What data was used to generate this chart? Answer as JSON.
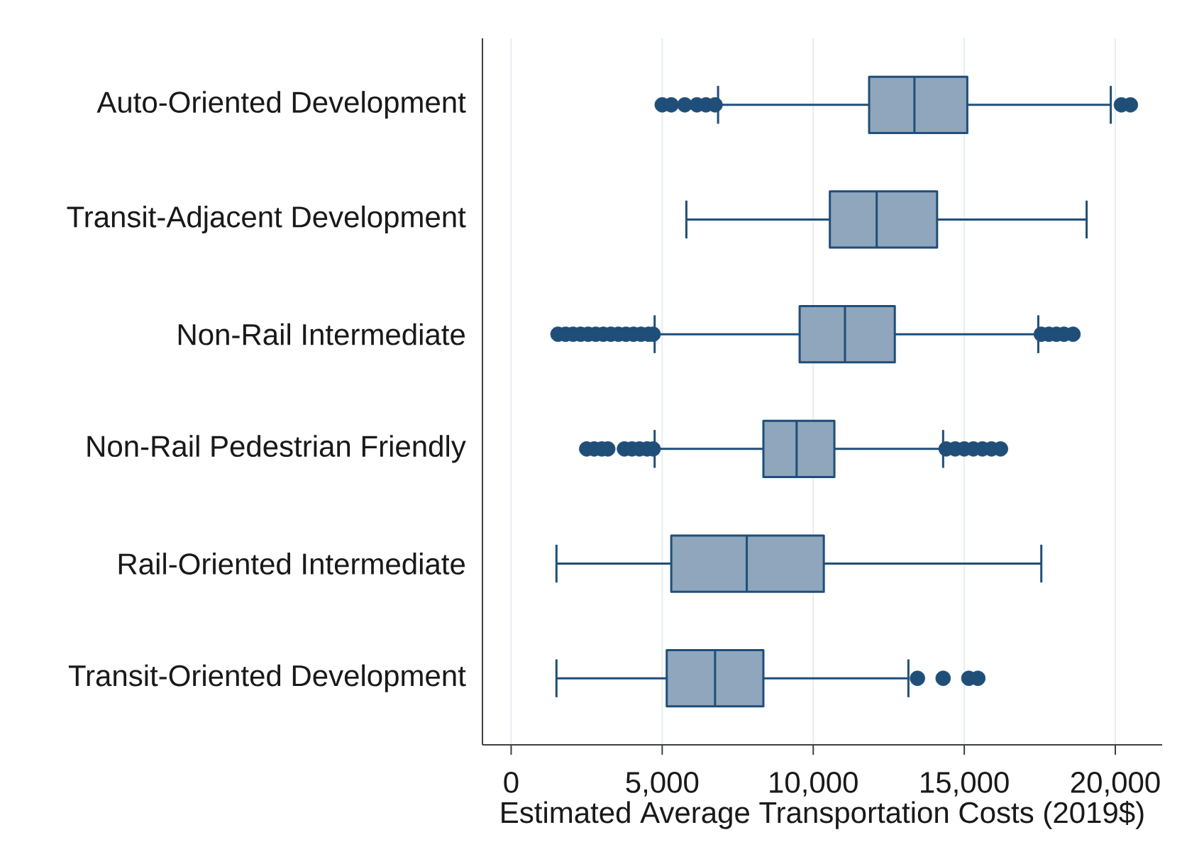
{
  "chart_data": {
    "type": "box",
    "orientation": "horizontal",
    "categories": [
      "Auto-Oriented Development",
      "Transit-Adjacent Development",
      "Non-Rail Intermediate",
      "Non-Rail Pedestrian Friendly",
      "Rail-Oriented Intermediate",
      "Transit-Oriented Development"
    ],
    "xlabel": "Estimated Average Transportation Costs (2019$)",
    "xlim": [
      -950,
      21550
    ],
    "xticks": [
      0,
      {
        "value": 5000,
        "label": "5,000"
      },
      {
        "value": 10000,
        "label": "10,000"
      },
      {
        "value": 15000,
        "label": "15,000"
      },
      {
        "value": 20000,
        "label": "20,000"
      }
    ],
    "grid": "x",
    "marker": "circle",
    "series": [
      {
        "color": "#1f4e79",
        "boxes": [
          {
            "low": 6850,
            "q1": 11850,
            "median": 13350,
            "q3": 15100,
            "high": 19850,
            "outliers": [
              5000,
              5300,
              5750,
              6150,
              6450,
              6750,
              20200,
              20500
            ]
          },
          {
            "low": 5800,
            "q1": 10550,
            "median": 12100,
            "q3": 14100,
            "high": 19050
          },
          {
            "low": 4750,
            "q1": 9550,
            "median": 11050,
            "q3": 12700,
            "high": 17450,
            "outliers": [
              1550,
              1800,
              2050,
              2300,
              2550,
              2800,
              3050,
              3300,
              3550,
              3800,
              4050,
              4300,
              4550,
              4700,
              17550,
              17800,
              18050,
              18300,
              18600
            ]
          },
          {
            "low": 4750,
            "q1": 8350,
            "median": 9450,
            "q3": 10700,
            "high": 14300,
            "outliers": [
              2500,
              2750,
              3000,
              3200,
              3750,
              4000,
              4250,
              4500,
              4700,
              14400,
              14700,
              15000,
              15300,
              15600,
              15900,
              16200
            ]
          },
          {
            "low": 1500,
            "q1": 5300,
            "median": 7800,
            "q3": 10350,
            "high": 17550
          },
          {
            "low": 1500,
            "q1": 5150,
            "median": 6750,
            "q3": 8350,
            "high": 13150,
            "outliers": [
              13450,
              14300,
              15150,
              15450
            ]
          }
        ]
      }
    ]
  }
}
